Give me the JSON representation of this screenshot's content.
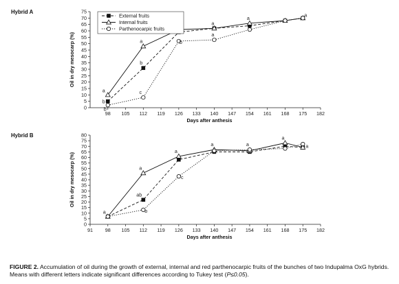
{
  "caption": {
    "label": "FIGURE 2.",
    "text": "Accumulation of oil during the growth of external, internal and red parthenocarpic fruits of the bunches of two Indupalma OxG hybrids. Means with different letters indicate significant differences according to Tukey test (",
    "stat": "P≤0.05",
    "end": ")."
  },
  "chart_data": [
    {
      "type": "line",
      "title": "Hybrid A",
      "xlabel": "Days after anthesis",
      "ylabel": "Oil in dry mesocarp (%)",
      "xlim": [
        91,
        182
      ],
      "ylim": [
        0,
        75
      ],
      "xticks": [
        98,
        105,
        112,
        119,
        126,
        133,
        140,
        147,
        154,
        161,
        168,
        175,
        182
      ],
      "yticks": [
        0,
        5,
        10,
        15,
        20,
        25,
        30,
        35,
        40,
        45,
        50,
        55,
        60,
        65,
        70,
        75
      ],
      "legend_position": "top-left",
      "series": [
        {
          "name": "External fruits",
          "marker": "square-filled",
          "dash": "dashed",
          "x": [
            98,
            112,
            126,
            140,
            154,
            168,
            175
          ],
          "y": [
            5,
            31,
            59,
            62,
            64,
            68,
            70
          ]
        },
        {
          "name": "Internal fruits",
          "marker": "triangle-open",
          "dash": "solid",
          "x": [
            98,
            112,
            126,
            140,
            154,
            168,
            175
          ],
          "y": [
            10,
            48,
            61,
            62,
            66,
            68,
            70
          ]
        },
        {
          "name": "Parthenocarpic fruits",
          "marker": "circle-open",
          "dash": "dotted",
          "x": [
            98,
            112,
            126,
            140,
            154,
            168,
            175
          ],
          "y": [
            2,
            8,
            52,
            53,
            61,
            68,
            70
          ]
        }
      ],
      "annotations": [
        {
          "text": "a",
          "x": 98,
          "y": 10
        },
        {
          "text": "b",
          "x": 98,
          "y": 5
        },
        {
          "text": "b",
          "x": 98,
          "y": 2
        },
        {
          "text": "a",
          "x": 112,
          "y": 48
        },
        {
          "text": "b",
          "x": 112,
          "y": 31
        },
        {
          "text": "c",
          "x": 112,
          "y": 8
        },
        {
          "text": "a",
          "x": 126,
          "y": 61
        },
        {
          "text": "ab",
          "x": 126,
          "y": 59
        },
        {
          "text": "b",
          "x": 126,
          "y": 52
        },
        {
          "text": "a",
          "x": 140,
          "y": 62
        },
        {
          "text": "a",
          "x": 140,
          "y": 53
        },
        {
          "text": "a",
          "x": 154,
          "y": 66
        },
        {
          "text": "a",
          "x": 175,
          "y": 70
        }
      ]
    },
    {
      "type": "line",
      "title": "Hybrid B",
      "xlabel": "Days after anthesis",
      "ylabel": "Oil in dry mesocarp (%)",
      "xlim": [
        91,
        182
      ],
      "ylim": [
        0,
        80
      ],
      "xticks": [
        91,
        98,
        105,
        112,
        119,
        126,
        133,
        140,
        147,
        154,
        161,
        168,
        175,
        182
      ],
      "yticks": [
        0,
        5,
        10,
        15,
        20,
        25,
        30,
        35,
        40,
        45,
        50,
        55,
        60,
        65,
        70,
        75,
        80
      ],
      "series": [
        {
          "name": "External fruits",
          "marker": "square-filled",
          "dash": "dashed",
          "x": [
            98,
            112,
            126,
            140,
            154,
            168,
            175
          ],
          "y": [
            7,
            22,
            58,
            65,
            65,
            70,
            69
          ]
        },
        {
          "name": "Internal fruits",
          "marker": "triangle-open",
          "dash": "solid",
          "x": [
            98,
            112,
            126,
            140,
            154,
            168,
            175
          ],
          "y": [
            7,
            46,
            61,
            67,
            66,
            73,
            69
          ]
        },
        {
          "name": "Parthenocarpic fruits",
          "marker": "circle-open",
          "dash": "dotted",
          "x": [
            98,
            112,
            126,
            140,
            154,
            168,
            175
          ],
          "y": [
            7,
            13,
            43,
            66,
            67,
            68,
            72
          ]
        }
      ],
      "annotations": [
        {
          "text": "a",
          "x": 98,
          "y": 7
        },
        {
          "text": "a",
          "x": 112,
          "y": 46
        },
        {
          "text": "ab",
          "x": 112,
          "y": 22
        },
        {
          "text": "b",
          "x": 112,
          "y": 13
        },
        {
          "text": "a",
          "x": 126,
          "y": 61
        },
        {
          "text": "c",
          "x": 126,
          "y": 43
        },
        {
          "text": "a",
          "x": 140,
          "y": 67
        },
        {
          "text": "a",
          "x": 154,
          "y": 67
        },
        {
          "text": "a",
          "x": 168,
          "y": 73
        },
        {
          "text": "a",
          "x": 175,
          "y": 70
        }
      ]
    }
  ]
}
